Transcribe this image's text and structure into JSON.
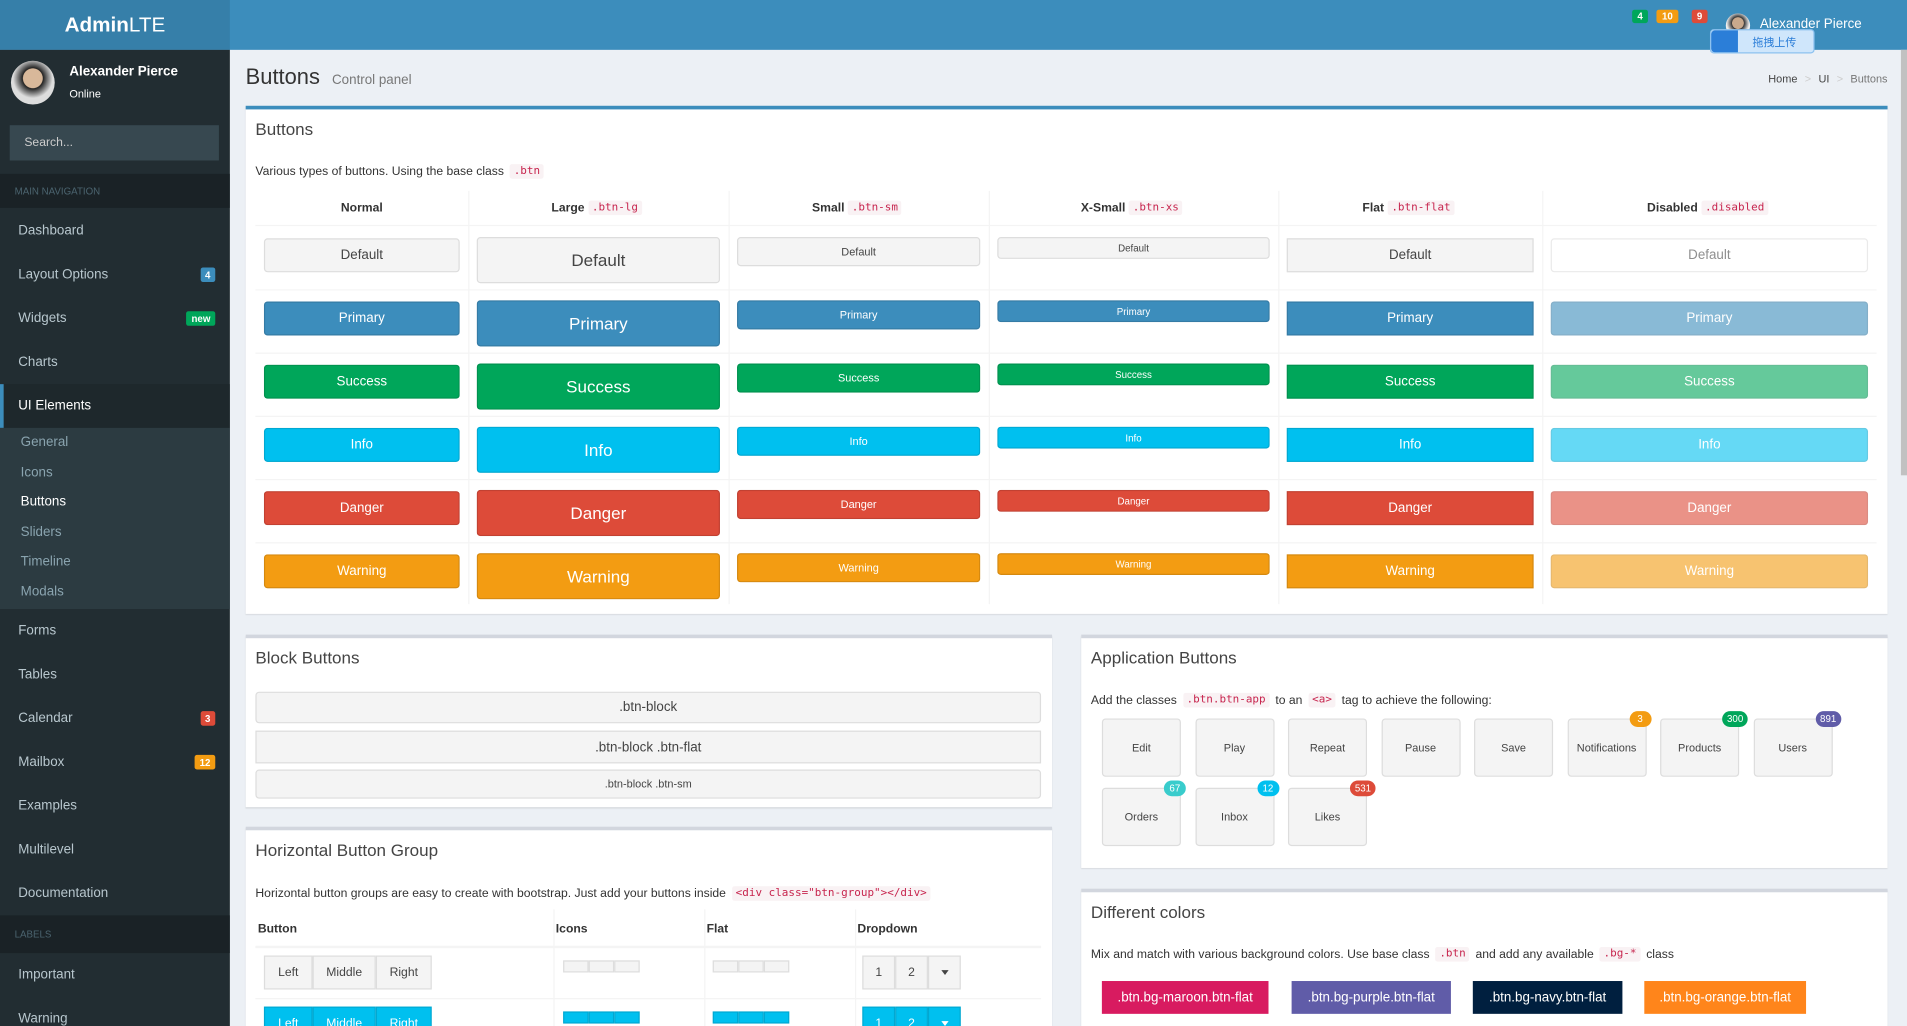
{
  "header": {
    "logo_bold": "Admin",
    "logo_light": "LTE",
    "badges": [
      {
        "text": "4",
        "color": "#00a65a"
      },
      {
        "text": "10",
        "color": "#f39c12"
      },
      {
        "text": "9",
        "color": "#dd4b39"
      }
    ],
    "user": "Alexander Pierce",
    "upload": "拖拽上传"
  },
  "sidebar": {
    "user": "Alexander Pierce",
    "status": "Online",
    "search": "Search...",
    "nav_header": "MAIN NAVIGATION",
    "menu": [
      {
        "label": "Dashboard"
      },
      {
        "label": "Layout Options",
        "badge": "4",
        "badge_color": "#3c8dbc"
      },
      {
        "label": "Widgets",
        "badge": "new",
        "badge_color": "#00a65a"
      },
      {
        "label": "Charts"
      },
      {
        "label": "UI Elements",
        "active": true,
        "children": [
          "General",
          "Icons",
          "Buttons",
          "Sliders",
          "Timeline",
          "Modals"
        ],
        "current": 2
      },
      {
        "label": "Forms"
      },
      {
        "label": "Tables"
      },
      {
        "label": "Calendar",
        "badge": "3",
        "badge_color": "#dd4b39"
      },
      {
        "label": "Mailbox",
        "badge": "12",
        "badge_color": "#f39c12"
      },
      {
        "label": "Examples"
      },
      {
        "label": "Multilevel"
      },
      {
        "label": "Documentation"
      }
    ],
    "labels_header": "LABELS",
    "labels": [
      "Important",
      "Warning"
    ]
  },
  "content": {
    "title": "Buttons",
    "subtitle": "Control panel",
    "breadcrumb": [
      "Home",
      "UI",
      "Buttons"
    ],
    "buttons_box": {
      "title": "Buttons",
      "intro": "Various types of buttons. Using the base class",
      "intro_code": ".btn",
      "columns": [
        {
          "label": "Normal"
        },
        {
          "label": "Large",
          "code": ".btn-lg"
        },
        {
          "label": "Small",
          "code": ".btn-sm"
        },
        {
          "label": "X-Small",
          "code": ".btn-xs"
        },
        {
          "label": "Flat",
          "code": ".btn-flat"
        },
        {
          "label": "Disabled",
          "code": ".disabled"
        }
      ],
      "buttons": [
        {
          "label": "Default",
          "color": "#f4f4f4"
        },
        {
          "label": "Primary",
          "color": "#3c8dbc"
        },
        {
          "label": "Success",
          "color": "#00a65a"
        },
        {
          "label": "Info",
          "color": "#00c0ef"
        },
        {
          "label": "Danger",
          "color": "#dd4b39"
        },
        {
          "label": "Warning",
          "color": "#f39c12"
        }
      ]
    },
    "block_box": {
      "title": "Block Buttons",
      "buttons": [
        ".btn-block",
        ".btn-block .btn-flat",
        ".btn-block .btn-sm"
      ]
    },
    "group_box": {
      "title": "Horizontal Button Group",
      "text": "Horizontal button groups are easy to create with bootstrap. Just add your buttons inside",
      "code": "<div class=\"btn-group\"></div>",
      "headers": [
        "Button",
        "Icons",
        "Flat",
        "Dropdown"
      ],
      "group": [
        "Left",
        "Middle",
        "Right"
      ],
      "dropdown": [
        "1",
        "2"
      ],
      "row_colors": [
        "#f4f4f4",
        "#00c0ef"
      ]
    },
    "app_box": {
      "title": "Application Buttons",
      "text1": "Add the classes",
      "code1": ".btn.btn-app",
      "text2": "to an",
      "code2": "<a>",
      "text3": "tag to achieve the following:",
      "apps": [
        {
          "label": "Edit"
        },
        {
          "label": "Play"
        },
        {
          "label": "Repeat"
        },
        {
          "label": "Pause"
        },
        {
          "label": "Save"
        },
        {
          "label": "Notifications",
          "badge": "3",
          "badge_color": "#f39c12"
        },
        {
          "label": "Products",
          "badge": "300",
          "badge_color": "#00a65a"
        },
        {
          "label": "Users",
          "badge": "891",
          "badge_color": "#605ca8"
        },
        {
          "label": "Orders",
          "badge": "67",
          "badge_color": "#39cccc"
        },
        {
          "label": "Inbox",
          "badge": "12",
          "badge_color": "#00c0ef"
        },
        {
          "label": "Likes",
          "badge": "531",
          "badge_color": "#dd4b39"
        }
      ]
    },
    "colors_box": {
      "title": "Different colors",
      "text1": "Mix and match with various background colors. Use base class",
      "code1": ".btn",
      "text2": "and add any available",
      "code2": ".bg-*",
      "text3": "class",
      "buttons": [
        {
          "label": ".btn.bg-maroon.btn-flat",
          "color": "#d81b60"
        },
        {
          "label": ".btn.bg-purple.btn-flat",
          "color": "#605ca8"
        },
        {
          "label": ".btn.bg-navy.btn-flat",
          "color": "#001f3f"
        },
        {
          "label": ".btn.bg-orange.btn-flat",
          "color": "#ff851b"
        }
      ]
    }
  }
}
